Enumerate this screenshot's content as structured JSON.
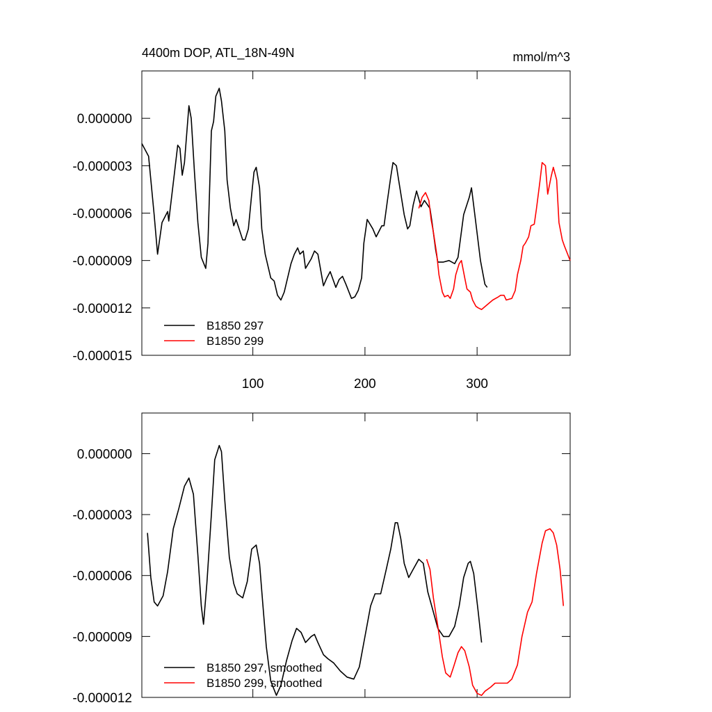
{
  "chart_data": [
    {
      "type": "line",
      "title": "4400m DOP, ATL_18N-49N",
      "units": "mmol/m^3",
      "xlim": [
        1,
        383
      ],
      "xticks": [
        100,
        200,
        300
      ],
      "show_xtick_labels": true,
      "ylim": [
        -1.5e-05,
        3e-06
      ],
      "yticks": [
        {
          "value": -1.5e-05,
          "label": "-0.000015"
        },
        {
          "value": -1.2e-05,
          "label": "-0.000012"
        },
        {
          "value": -9e-06,
          "label": "-0.000009"
        },
        {
          "value": -6e-06,
          "label": "-0.000006"
        },
        {
          "value": -3e-06,
          "label": "-0.000003"
        },
        {
          "value": 0,
          "label": "0.000000"
        }
      ],
      "legend": "lower left",
      "series": [
        {
          "name": "B1850 297",
          "color": "#000000",
          "x": [
            1,
            7,
            12,
            15,
            19,
            24,
            25,
            30,
            33,
            35,
            37,
            39,
            43,
            45,
            48,
            51,
            54,
            58,
            60,
            63,
            65,
            67,
            70,
            72,
            75,
            77,
            80,
            83,
            85,
            91,
            93,
            96,
            99,
            101,
            103,
            106,
            108,
            111,
            116,
            119,
            122,
            125,
            128,
            134,
            137,
            140,
            142,
            145,
            147,
            152,
            155,
            158,
            160,
            163,
            166,
            169,
            174,
            177,
            180,
            183,
            188,
            191,
            194,
            197,
            199,
            202,
            207,
            210,
            215,
            217,
            220,
            223,
            225,
            228,
            230,
            235,
            238,
            240,
            243,
            246,
            250,
            253,
            258,
            260,
            263,
            265,
            270,
            275,
            280,
            283,
            288,
            293,
            295,
            298,
            303,
            307,
            309
          ],
          "values": [
            -1.6e-06,
            -2.4e-06,
            -6.1e-06,
            -8.6e-06,
            -6.6e-06,
            -5.9e-06,
            -6.5e-06,
            -3.5e-06,
            -1.7e-06,
            -1.9e-06,
            -3.6e-06,
            -2.8e-06,
            8e-07,
            0,
            -3.5e-06,
            -6.6e-06,
            -8.8e-06,
            -9.5e-06,
            -7.9e-06,
            -8e-07,
            -2e-07,
            1.4e-06,
            1.9e-06,
            1.1e-06,
            -8e-07,
            -3.9e-06,
            -5.7e-06,
            -6.8e-06,
            -6.4e-06,
            -7.7e-06,
            -7.7e-06,
            -7e-06,
            -4.8e-06,
            -3.4e-06,
            -3.1e-06,
            -4.4e-06,
            -7e-06,
            -8.6e-06,
            -1.01e-05,
            -1.03e-05,
            -1.12e-05,
            -1.15e-05,
            -1.1e-05,
            -9.2e-06,
            -8.6e-06,
            -8.2e-06,
            -8.6e-06,
            -8.4e-06,
            -9.5e-06,
            -8.9e-06,
            -8.4e-06,
            -8.6e-06,
            -9.4e-06,
            -1.06e-05,
            -1.01e-05,
            -9.7e-06,
            -1.07e-05,
            -1.02e-05,
            -1e-05,
            -1.05e-05,
            -1.14e-05,
            -1.13e-05,
            -1.09e-05,
            -1.01e-05,
            -7.9e-06,
            -6.4e-06,
            -7e-06,
            -7.5e-06,
            -6.8e-06,
            -6.8e-06,
            -5.2e-06,
            -3.7e-06,
            -2.8e-06,
            -3e-06,
            -3.9e-06,
            -6.1e-06,
            -7e-06,
            -6.8e-06,
            -5.5e-06,
            -4.6e-06,
            -5.6e-06,
            -5.2e-06,
            -5.7e-06,
            -6.7e-06,
            -8.3e-06,
            -9.1e-06,
            -9.1e-06,
            -9e-06,
            -9.2e-06,
            -8.8e-06,
            -6.1e-06,
            -5e-06,
            -4.4e-06,
            -6.1e-06,
            -9e-06,
            -1.05e-05,
            -1.07e-05
          ]
        },
        {
          "name": "B1850 299",
          "color": "#ff0000",
          "x": [
            248,
            251,
            254,
            257,
            259,
            261,
            264,
            266,
            269,
            271,
            274,
            276,
            279,
            281,
            284,
            286,
            289,
            291,
            294,
            296,
            299,
            301,
            304,
            309,
            314,
            319,
            321,
            324,
            326,
            331,
            334,
            336,
            339,
            341,
            343,
            346,
            348,
            351,
            353,
            356,
            358,
            361,
            363,
            366,
            368,
            371,
            373,
            376,
            378,
            383
          ],
          "values": [
            -5.7e-06,
            -5e-06,
            -4.7e-06,
            -5.2e-06,
            -6.4e-06,
            -7.2e-06,
            -8.6e-06,
            -9.9e-06,
            -1.1e-05,
            -1.13e-05,
            -1.12e-05,
            -1.14e-05,
            -1.08e-05,
            -9.9e-06,
            -9.2e-06,
            -9e-06,
            -1.01e-05,
            -1.08e-05,
            -1.1e-05,
            -1.15e-05,
            -1.19e-05,
            -1.2e-05,
            -1.21e-05,
            -1.18e-05,
            -1.15e-05,
            -1.13e-05,
            -1.12e-05,
            -1.12e-05,
            -1.15e-05,
            -1.14e-05,
            -1.09e-05,
            -9.9e-06,
            -9e-06,
            -8.1e-06,
            -7.9e-06,
            -7.5e-06,
            -6.8e-06,
            -6.7e-06,
            -5.7e-06,
            -4e-06,
            -2.8e-06,
            -3e-06,
            -4.8e-06,
            -3.7e-06,
            -3.1e-06,
            -3.9e-06,
            -6.6e-06,
            -7.7e-06,
            -8.1e-06,
            -9e-06
          ]
        }
      ]
    },
    {
      "type": "line",
      "xlim": [
        1,
        383
      ],
      "xticks": [
        100,
        200,
        300
      ],
      "show_xtick_labels": false,
      "ylim": [
        -1.2e-05,
        2e-06
      ],
      "yticks": [
        {
          "value": -1.2e-05,
          "label": "-0.000012"
        },
        {
          "value": -9e-06,
          "label": "-0.000009"
        },
        {
          "value": -6e-06,
          "label": "-0.000006"
        },
        {
          "value": -3e-06,
          "label": "-0.000003"
        },
        {
          "value": 0,
          "label": "0.000000"
        }
      ],
      "legend": "lower left",
      "series": [
        {
          "name": "B1850 297, smoothed",
          "color": "#000000",
          "x": [
            6,
            9,
            12,
            15,
            20,
            24,
            29,
            34,
            39,
            43,
            47,
            51,
            54,
            56,
            59,
            63,
            66,
            70,
            72,
            75,
            79,
            83,
            86,
            91,
            95,
            99,
            103,
            106,
            109,
            112,
            116,
            121,
            125,
            130,
            135,
            139,
            143,
            147,
            152,
            155,
            158,
            163,
            167,
            172,
            178,
            184,
            190,
            195,
            200,
            205,
            209,
            214,
            219,
            223,
            227,
            229,
            232,
            235,
            239,
            243,
            248,
            252,
            256,
            260,
            265,
            270,
            275,
            280,
            284,
            288,
            292,
            294,
            297,
            301,
            304
          ],
          "values": [
            -3.9e-06,
            -6.1e-06,
            -7.3e-06,
            -7.5e-06,
            -7e-06,
            -5.8e-06,
            -3.7e-06,
            -2.7e-06,
            -1.6e-06,
            -1.2e-06,
            -2e-06,
            -5e-06,
            -7.5e-06,
            -8.4e-06,
            -6.4e-06,
            -3e-06,
            -3e-07,
            4e-07,
            1e-07,
            -2.3e-06,
            -5.1e-06,
            -6.4e-06,
            -6.9e-06,
            -7.1e-06,
            -6.3e-06,
            -4.7e-06,
            -4.5e-06,
            -5.4e-06,
            -7.5e-06,
            -9.5e-06,
            -1.12e-05,
            -1.19e-05,
            -1.14e-05,
            -1.02e-05,
            -9.2e-06,
            -8.6e-06,
            -8.8e-06,
            -9.3e-06,
            -9e-06,
            -8.9e-06,
            -9.3e-06,
            -9.9e-06,
            -1.01e-05,
            -1.03e-05,
            -1.07e-05,
            -1.1e-05,
            -1.11e-05,
            -1.05e-05,
            -9e-06,
            -7.5e-06,
            -6.9e-06,
            -6.9e-06,
            -5.7e-06,
            -4.7e-06,
            -3.4e-06,
            -3.4e-06,
            -4.2e-06,
            -5.4e-06,
            -6.1e-06,
            -5.7e-06,
            -5.2e-06,
            -5.4e-06,
            -6.8e-06,
            -7.6e-06,
            -8.6e-06,
            -9e-06,
            -9e-06,
            -8.5e-06,
            -7.5e-06,
            -6.1e-06,
            -5.4e-06,
            -5.3e-06,
            -5.9e-06,
            -7.8e-06,
            -9.3e-06
          ]
        },
        {
          "name": "B1850 299, smoothed",
          "color": "#ff0000",
          "x": [
            255,
            258,
            261,
            265,
            269,
            272,
            276,
            279,
            283,
            286,
            289,
            293,
            296,
            300,
            304,
            307,
            312,
            316,
            321,
            327,
            331,
            336,
            340,
            345,
            349,
            353,
            358,
            361,
            365,
            368,
            371,
            374,
            377
          ],
          "values": [
            -5.2e-06,
            -5.7e-06,
            -7.1e-06,
            -8.5e-06,
            -1e-05,
            -1.08e-05,
            -1.1e-05,
            -1.05e-05,
            -9.8e-06,
            -9.5e-06,
            -9.7e-06,
            -1.05e-05,
            -1.14e-05,
            -1.18e-05,
            -1.19e-05,
            -1.17e-05,
            -1.15e-05,
            -1.13e-05,
            -1.13e-05,
            -1.13e-05,
            -1.11e-05,
            -1.04e-05,
            -9e-06,
            -7.8e-06,
            -7.3e-06,
            -5.9e-06,
            -4.4e-06,
            -3.8e-06,
            -3.7e-06,
            -3.9e-06,
            -4.5e-06,
            -5.7e-06,
            -7.5e-06
          ]
        }
      ]
    }
  ]
}
